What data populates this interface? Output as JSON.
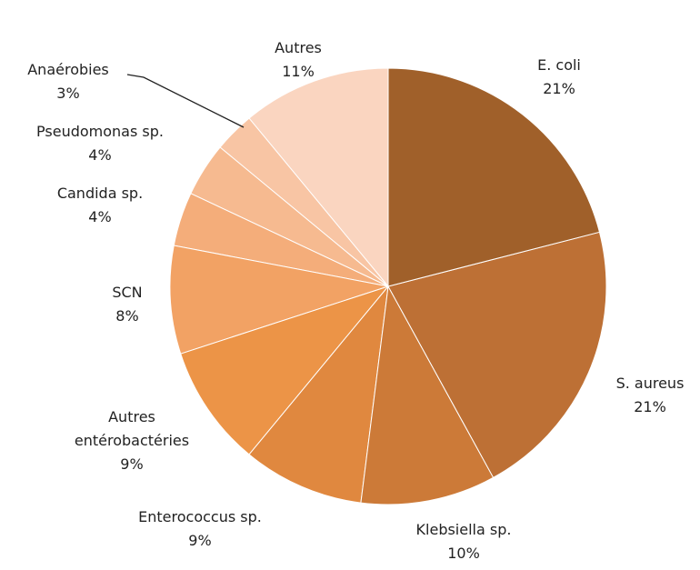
{
  "chart_data": {
    "type": "pie",
    "categories": [
      "E. coli",
      "S. aureus",
      "Klebsiella sp.",
      "Enterococcus sp.",
      "Autres entérobactéries",
      "SCN",
      "Candida sp.",
      "Pseudomonas sp.",
      "Anaérobies",
      "Autres"
    ],
    "values": [
      21,
      21,
      10,
      9,
      9,
      8,
      4,
      4,
      3,
      11
    ],
    "value_labels": [
      "21%",
      "21%",
      "10%",
      "9%",
      "9%",
      "8%",
      "4%",
      "4%",
      "3%",
      "11%"
    ],
    "colors": [
      "#a0602a",
      "#bd7035",
      "#cc7a38",
      "#e0883f",
      "#ec9447",
      "#f2a264",
      "#f4ad7a",
      "#f6ba90",
      "#f8c5a4",
      "#fad5c0"
    ]
  }
}
